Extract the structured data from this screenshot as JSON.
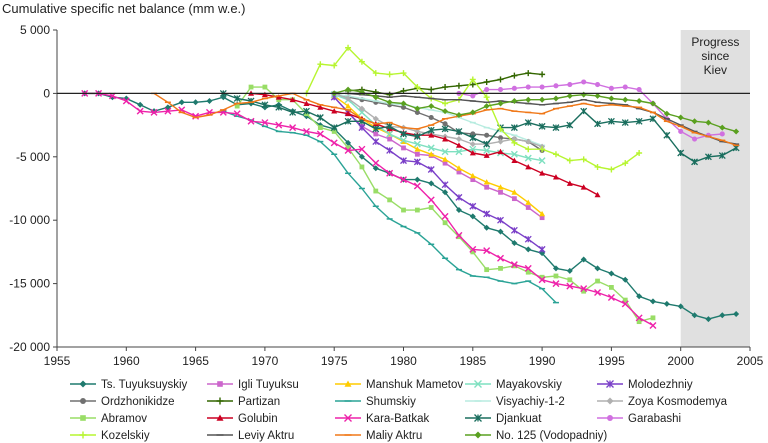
{
  "chart_data": {
    "type": "line",
    "title": "",
    "ylabel": "Cumulative specific net balance (mm w.e.)",
    "xlabel": "",
    "xlim": [
      1955,
      2005
    ],
    "ylim": [
      -20000,
      5000
    ],
    "xticks": [
      1955,
      1960,
      1965,
      1970,
      1975,
      1980,
      1985,
      1990,
      1995,
      2000,
      2005
    ],
    "yticks": [
      5000,
      0,
      -5000,
      -10000,
      -15000,
      -20000
    ],
    "xtick_labels": [
      "1955",
      "1960",
      "1965",
      "1970",
      "1975",
      "1980",
      "1985",
      "1990",
      "1995",
      "2000",
      "2005"
    ],
    "ytick_labels": [
      "5 000",
      "0",
      "-5 000",
      "-10 000",
      "-15 000",
      "-20 000"
    ],
    "annotation": {
      "lines": [
        "Progress",
        "since",
        "Kiev"
      ],
      "x_range": [
        2000,
        2005
      ]
    },
    "grid": false,
    "legend_position": "bottom",
    "series": [
      {
        "name": "Ts. Tuyuksuyskiy",
        "color": "#1f7a6e",
        "marker": "diamond",
        "x": [
          1957,
          1958,
          1959,
          1960,
          1961,
          1962,
          1963,
          1964,
          1965,
          1966,
          1967,
          1968,
          1969,
          1970,
          1971,
          1972,
          1973,
          1974,
          1975,
          1976,
          1977,
          1978,
          1979,
          1980,
          1981,
          1982,
          1983,
          1984,
          1985,
          1986,
          1987,
          1988,
          1989,
          1990,
          1991,
          1992,
          1993,
          1994,
          1995,
          1996,
          1997,
          1998,
          1999,
          2000,
          2001,
          2002,
          2003,
          2004
        ],
        "y": [
          0,
          0,
          -300,
          -400,
          -900,
          -1400,
          -1100,
          -700,
          -700,
          -600,
          -300,
          -900,
          -800,
          -1100,
          -900,
          -1400,
          -1800,
          -2500,
          -2800,
          -3900,
          -5000,
          -5900,
          -6300,
          -6800,
          -6800,
          -7100,
          -7800,
          -9200,
          -9700,
          -10600,
          -10900,
          -11800,
          -12300,
          -12600,
          -13800,
          -14000,
          -13100,
          -13800,
          -14200,
          -14700,
          -16000,
          -16400,
          -16600,
          -16800,
          -17500,
          -17800,
          -17500,
          -17400
        ]
      },
      {
        "name": "Igli Tuyuksu",
        "color": "#cc66cc",
        "marker": "square",
        "x": [
          1975,
          1976,
          1977,
          1978,
          1979,
          1980,
          1981,
          1982,
          1983,
          1984,
          1985,
          1986,
          1987,
          1988,
          1989,
          1990
        ],
        "y": [
          -300,
          -1500,
          -2600,
          -3200,
          -3600,
          -4300,
          -4800,
          -4900,
          -5500,
          -6200,
          -6800,
          -7400,
          -7800,
          -8300,
          -9000,
          -9800
        ]
      },
      {
        "name": "Manshuk Mametov",
        "color": "#ffcc00",
        "marker": "triangle",
        "x": [
          1975,
          1976,
          1977,
          1978,
          1979,
          1980,
          1981,
          1982,
          1983,
          1984,
          1985,
          1986,
          1987,
          1988,
          1989,
          1990
        ],
        "y": [
          -200,
          -1000,
          -2000,
          -2700,
          -3200,
          -3800,
          -4400,
          -4800,
          -5200,
          -5900,
          -6500,
          -7000,
          -7400,
          -7800,
          -8600,
          -9500
        ]
      },
      {
        "name": "Mayakovskiy",
        "color": "#7fe0c0",
        "marker": "x",
        "x": [
          1975,
          1976,
          1977,
          1978,
          1979,
          1980,
          1981,
          1982,
          1983,
          1984,
          1985,
          1986,
          1987,
          1988,
          1989,
          1990
        ],
        "y": [
          -100,
          -500,
          -1500,
          -2500,
          -3200,
          -3700,
          -4000,
          -4300,
          -4600,
          -4600,
          -4400,
          -4500,
          -4700,
          -4800,
          -5100,
          -5300
        ]
      },
      {
        "name": "Molodezhniy",
        "color": "#7a3fc8",
        "marker": "star",
        "x": [
          1975,
          1976,
          1977,
          1978,
          1979,
          1980,
          1981,
          1982,
          1983,
          1984,
          1985,
          1986,
          1987,
          1988,
          1989,
          1990
        ],
        "y": [
          -300,
          -1500,
          -2700,
          -3800,
          -4500,
          -5300,
          -5400,
          -6000,
          -7200,
          -8200,
          -8900,
          -9500,
          -10000,
          -10800,
          -11500,
          -12300
        ]
      },
      {
        "name": "Ordzhonikidze",
        "color": "#707070",
        "marker": "circle",
        "x": [
          1975,
          1976,
          1977,
          1978,
          1979,
          1980,
          1981,
          1982,
          1983,
          1984,
          1985,
          1986,
          1987,
          1988,
          1989,
          1990
        ],
        "y": [
          0,
          -300,
          -500,
          -700,
          -900,
          -1100,
          -1500,
          -1900,
          -2400,
          -3100,
          -3200,
          -3300,
          -3500,
          -3600,
          -3800,
          -4500
        ]
      },
      {
        "name": "Partizan",
        "color": "#336600",
        "marker": "plus",
        "x": [
          1976,
          1977,
          1978,
          1979,
          1980,
          1981,
          1982,
          1983,
          1984,
          1985,
          1986,
          1987,
          1988,
          1989,
          1990
        ],
        "y": [
          200,
          300,
          100,
          -100,
          200,
          400,
          300,
          500,
          600,
          700,
          900,
          1100,
          1400,
          1600,
          1500
        ]
      },
      {
        "name": "Shumskiy",
        "color": "#2aa396",
        "marker": "dash",
        "x": [
          1967,
          1968,
          1969,
          1970,
          1971,
          1972,
          1973,
          1974,
          1975,
          1976,
          1977,
          1978,
          1979,
          1980,
          1981,
          1982,
          1983,
          1984,
          1985,
          1986,
          1987,
          1988,
          1989,
          1990,
          1991
        ],
        "y": [
          -1400,
          -1800,
          -2100,
          -2600,
          -3000,
          -3100,
          -3300,
          -3800,
          -4800,
          -6300,
          -7500,
          -8900,
          -9900,
          -10500,
          -11000,
          -11900,
          -13000,
          -13900,
          -14400,
          -14500,
          -14800,
          -15000,
          -14800,
          -15400,
          -16500
        ]
      },
      {
        "name": "Visyachiy-1-2",
        "color": "#b8ece0",
        "marker": "dash",
        "x": [
          1975,
          1976,
          1977,
          1978,
          1979,
          1980,
          1981,
          1982,
          1983,
          1984,
          1985,
          1986,
          1987,
          1988,
          1989,
          1990
        ],
        "y": [
          -100,
          -200,
          -400,
          -600,
          -800,
          -900,
          -1100,
          -1300,
          -1500,
          -1900,
          -2300,
          -2700,
          -3000,
          -3300,
          -3700,
          -4100
        ]
      },
      {
        "name": "Zoya Kosmodemya",
        "color": "#b0b0b0",
        "marker": "diamond",
        "x": [
          1975,
          1976,
          1977,
          1978,
          1979,
          1980,
          1981,
          1982,
          1983,
          1984,
          1985,
          1986,
          1987,
          1988,
          1989,
          1990
        ],
        "y": [
          0,
          -400,
          -1200,
          -2000,
          -2600,
          -2700,
          -3000,
          -3200,
          -3400,
          -3600,
          -4000,
          -4000,
          -3800,
          -3600,
          -3800,
          -4200
        ]
      },
      {
        "name": "Abramov",
        "color": "#99dd66",
        "marker": "square",
        "x": [
          1968,
          1969,
          1970,
          1971,
          1972,
          1973,
          1974,
          1975,
          1976,
          1977,
          1978,
          1979,
          1980,
          1981,
          1982,
          1983,
          1984,
          1985,
          1986,
          1987,
          1988,
          1989,
          1990,
          1991,
          1992,
          1993,
          1994,
          1995,
          1996,
          1997,
          1998
        ],
        "y": [
          -1000,
          500,
          500,
          -500,
          -500,
          -1600,
          -2700,
          -3000,
          -4300,
          -5800,
          -7700,
          -8400,
          -9200,
          -9200,
          -9000,
          -10200,
          -11300,
          -12500,
          -13900,
          -13800,
          -13600,
          -14100,
          -14500,
          -14400,
          -14700,
          -15600,
          -14800,
          -15300,
          -16300,
          -18000,
          -17700
        ]
      },
      {
        "name": "Golubin",
        "color": "#cc0022",
        "marker": "triangle",
        "x": [
          1969,
          1970,
          1971,
          1972,
          1973,
          1974,
          1975,
          1976,
          1977,
          1978,
          1979,
          1980,
          1981,
          1982,
          1983,
          1984,
          1985,
          1986,
          1987,
          1988,
          1989,
          1990,
          1991,
          1992,
          1993,
          1994
        ],
        "y": [
          0,
          -100,
          -300,
          -500,
          -800,
          -1100,
          -1400,
          -1600,
          -2000,
          -2400,
          -2800,
          -3100,
          -3300,
          -3300,
          -3600,
          -4100,
          -4700,
          -4900,
          -4600,
          -5300,
          -5800,
          -6300,
          -6600,
          -7100,
          -7400,
          -8000
        ]
      },
      {
        "name": "Kara-Batkak",
        "color": "#ee22aa",
        "marker": "x",
        "x": [
          1957,
          1958,
          1959,
          1960,
          1961,
          1962,
          1963,
          1964,
          1965,
          1966,
          1967,
          1968,
          1969,
          1970,
          1971,
          1972,
          1973,
          1974,
          1975,
          1976,
          1977,
          1978,
          1979,
          1980,
          1981,
          1982,
          1983,
          1984,
          1985,
          1986,
          1987,
          1988,
          1989,
          1990,
          1991,
          1992,
          1993,
          1994,
          1995,
          1996,
          1997,
          1998
        ],
        "y": [
          0,
          0,
          -200,
          -600,
          -1400,
          -1500,
          -1400,
          -1300,
          -1800,
          -1500,
          -1500,
          -1600,
          -2200,
          -2300,
          -2500,
          -2700,
          -3000,
          -3200,
          -3900,
          -4500,
          -4400,
          -5500,
          -6300,
          -6800,
          -7300,
          -8400,
          -9700,
          -11200,
          -12300,
          -12400,
          -13000,
          -13500,
          -13800,
          -14700,
          -15000,
          -15200,
          -15400,
          -15700,
          -16100,
          -16600,
          -17700,
          -18300
        ]
      },
      {
        "name": "Djankuat",
        "color": "#1a6e5e",
        "marker": "star",
        "x": [
          1967,
          1968,
          1969,
          1970,
          1971,
          1972,
          1973,
          1974,
          1975,
          1976,
          1977,
          1978,
          1979,
          1980,
          1981,
          1982,
          1983,
          1984,
          1985,
          1986,
          1987,
          1988,
          1989,
          1990,
          1991,
          1992,
          1993,
          1994,
          1995,
          1996,
          1997,
          1998,
          1999,
          2000,
          2001,
          2002,
          2003,
          2004
        ],
        "y": [
          0,
          -400,
          -600,
          -900,
          -1100,
          -1500,
          -1400,
          -1900,
          -2700,
          -2200,
          -2200,
          -2800,
          -2600,
          -3200,
          -3400,
          -2900,
          -2800,
          -3000,
          -3500,
          -4000,
          -2700,
          -2700,
          -2300,
          -2600,
          -2700,
          -2500,
          -1400,
          -2400,
          -2200,
          -2300,
          -2200,
          -2000,
          -3300,
          -4700,
          -5400,
          -5000,
          -4900,
          -4300
        ]
      },
      {
        "name": "Garabashi",
        "color": "#d070e0",
        "marker": "circle",
        "x": [
          1984,
          1985,
          1986,
          1987,
          1988,
          1989,
          1990,
          1991,
          1992,
          1993,
          1994,
          1995,
          1996,
          1997,
          1998,
          1999,
          2000,
          2001,
          2002,
          2003
        ],
        "y": [
          0,
          -200,
          300,
          300,
          400,
          500,
          500,
          600,
          700,
          900,
          700,
          400,
          500,
          300,
          -800,
          -2000,
          -3000,
          -3600,
          -3300,
          -3200
        ]
      },
      {
        "name": "Kozelskiy",
        "color": "#b7f530",
        "marker": "plus",
        "x": [
          1973,
          1974,
          1975,
          1976,
          1977,
          1978,
          1979,
          1980,
          1981,
          1982,
          1983,
          1984,
          1985,
          1986,
          1987,
          1988,
          1989,
          1990,
          1991,
          1992,
          1993,
          1994,
          1995,
          1996,
          1997
        ],
        "y": [
          0,
          2300,
          2200,
          3600,
          2500,
          1600,
          1500,
          1600,
          500,
          -400,
          -800,
          -500,
          1100,
          -300,
          -2800,
          -3900,
          -4400,
          -4400,
          -4800,
          -5300,
          -5200,
          -5800,
          -6000,
          -5500,
          -4700
        ]
      },
      {
        "name": "Leviy Aktru",
        "color": "#555555",
        "marker": "dash",
        "x": [
          1976,
          1977,
          1978,
          1979,
          1980,
          1981,
          1982,
          1983,
          1984,
          1985,
          1986,
          1987,
          1988,
          1989,
          1990,
          1991,
          1992,
          1993,
          1994,
          1995,
          1996,
          1997,
          1998,
          1999,
          2000,
          2001,
          2002,
          2003,
          2004
        ],
        "y": [
          0,
          -100,
          -200,
          -300,
          -200,
          -300,
          -400,
          -500,
          -500,
          -600,
          -700,
          -600,
          -700,
          -800,
          -900,
          -800,
          -700,
          -500,
          -700,
          -800,
          -900,
          -1200,
          -1500,
          -2000,
          -2500,
          -3000,
          -3400,
          -3800,
          -4000
        ]
      },
      {
        "name": "Maliy Aktru",
        "color": "#f07818",
        "marker": "dash",
        "x": [
          1962,
          1963,
          1964,
          1965,
          1966,
          1967,
          1968,
          1969,
          1970,
          1971,
          1972,
          1973,
          1974,
          1975,
          1976,
          1977,
          1978,
          1979,
          1980,
          1981,
          1982,
          1983,
          1984,
          1985,
          1986,
          1987,
          1988,
          1989,
          1990,
          1991,
          1992,
          1993,
          1994,
          1995,
          1996,
          1997,
          1998,
          1999,
          2000,
          2001,
          2002,
          2003,
          2004
        ],
        "y": [
          0,
          -700,
          -1500,
          -1900,
          -1700,
          -1300,
          -800,
          -700,
          -400,
          -200,
          0,
          -500,
          -900,
          -1100,
          -1300,
          -2000,
          -2400,
          -2300,
          -2700,
          -2800,
          -2500,
          -2000,
          -1800,
          -1600,
          -1300,
          -1200,
          -1400,
          -1500,
          -1600,
          -1200,
          -1000,
          -800,
          -1000,
          -900,
          -1000,
          -1100,
          -1500,
          -2200,
          -2600,
          -3100,
          -3400,
          -3700,
          -4100
        ]
      },
      {
        "name": "No. 125 (Vodopadniy)",
        "color": "#5aa020",
        "marker": "diamond",
        "x": [
          1975,
          1976,
          1977,
          1978,
          1979,
          1980,
          1981,
          1982,
          1983,
          1984,
          1985,
          1986,
          1987,
          1988,
          1989,
          1990,
          1991,
          1992,
          1993,
          1994,
          1995,
          1996,
          1997,
          1998,
          1999,
          2000,
          2001,
          2002,
          2003,
          2004
        ],
        "y": [
          0,
          300,
          100,
          -300,
          -700,
          -800,
          -1200,
          -1000,
          -1400,
          -1700,
          -1500,
          -1000,
          -800,
          -600,
          -500,
          -500,
          -400,
          -200,
          -100,
          -200,
          -400,
          -500,
          -600,
          -800,
          -1600,
          -1900,
          -2200,
          -2300,
          -2700,
          -3000
        ]
      }
    ]
  }
}
